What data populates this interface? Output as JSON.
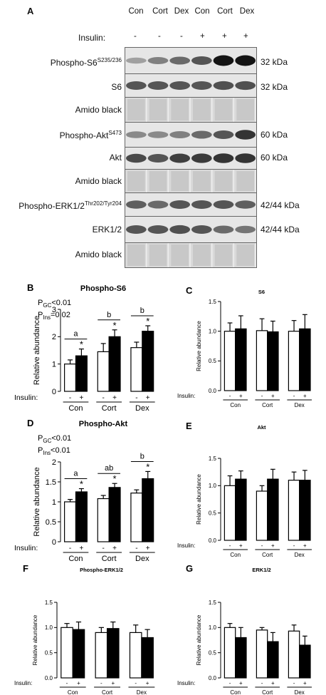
{
  "panel_a": {
    "letter": "A",
    "lanes": [
      "Con",
      "Cort",
      "Dex",
      "Con",
      "Cort",
      "Dex"
    ],
    "insulin_label": "Insulin:",
    "insulin_marks": [
      "-",
      "-",
      "-",
      "+",
      "+",
      "+"
    ],
    "blots": [
      {
        "label": "Phospho-S6",
        "sup": "S235/236",
        "kda": "32 kDa",
        "kind": "band",
        "intensity": [
          0.35,
          0.5,
          0.6,
          0.7,
          1.0,
          1.0
        ]
      },
      {
        "label": "S6",
        "sup": "",
        "kda": "32 kDa",
        "kind": "band",
        "intensity": [
          0.7,
          0.7,
          0.7,
          0.7,
          0.72,
          0.72
        ]
      },
      {
        "label": "Amido black",
        "sup": "",
        "kda": "",
        "kind": "stain",
        "intensity": [
          0.3,
          0.3,
          0.3,
          0.3,
          0.3,
          0.3
        ]
      },
      {
        "label": "Phospho-Akt",
        "sup": "S473",
        "kda": "60 kDa",
        "kind": "band",
        "intensity": [
          0.45,
          0.45,
          0.5,
          0.6,
          0.7,
          0.85
        ]
      },
      {
        "label": "Akt",
        "sup": "",
        "kda": "60 kDa",
        "kind": "band",
        "intensity": [
          0.75,
          0.7,
          0.8,
          0.82,
          0.85,
          0.85
        ]
      },
      {
        "label": "Amido black",
        "sup": "",
        "kda": "",
        "kind": "stain",
        "intensity": [
          0.3,
          0.3,
          0.3,
          0.3,
          0.3,
          0.3
        ]
      },
      {
        "label": "Phospho-ERK1/2",
        "sup": "Thr202/Tyr204",
        "kda": "42/44 kDa",
        "kind": "band",
        "intensity": [
          0.65,
          0.6,
          0.7,
          0.7,
          0.7,
          0.65
        ]
      },
      {
        "label": "ERK1/2",
        "sup": "",
        "kda": "42/44 kDa",
        "kind": "band",
        "intensity": [
          0.7,
          0.7,
          0.72,
          0.7,
          0.6,
          0.55
        ]
      },
      {
        "label": "Amido black",
        "sup": "",
        "kda": "",
        "kind": "stain",
        "intensity": [
          0.3,
          0.3,
          0.3,
          0.3,
          0.3,
          0.3
        ]
      }
    ]
  },
  "chart_data": [
    {
      "panel": "B",
      "type": "bar",
      "title": "Phospho-S6",
      "ylabel": "Relative abundance",
      "ylim": [
        0,
        3
      ],
      "yticks": [
        0,
        1,
        2,
        3
      ],
      "groups": [
        "Con",
        "Cort",
        "Dex"
      ],
      "insulin_label": "Insulin:",
      "series": [
        {
          "name": "-",
          "values": [
            1.0,
            1.45,
            1.6
          ],
          "errors": [
            0.15,
            0.3,
            0.2
          ]
        },
        {
          "name": "+",
          "values": [
            1.3,
            2.0,
            2.2
          ],
          "errors": [
            0.25,
            0.25,
            0.2
          ]
        }
      ],
      "stars": [
        true,
        true,
        true
      ],
      "letters": [
        "a",
        "b",
        "b"
      ],
      "stats": [
        {
          "p": "P",
          "sub": "GC",
          "rest": "<0.01"
        },
        {
          "p": "P",
          "sub": "Ins",
          "rest": "=0.02"
        }
      ]
    },
    {
      "panel": "C",
      "type": "bar",
      "title": "S6",
      "ylabel": "Relative abundance",
      "ylim": [
        0,
        1.5
      ],
      "yticks": [
        0.0,
        0.5,
        1.0,
        1.5
      ],
      "groups": [
        "Con",
        "Cort",
        "Dex"
      ],
      "insulin_label": "Insulin:",
      "series": [
        {
          "name": "-",
          "values": [
            1.0,
            1.01,
            1.0
          ],
          "errors": [
            0.14,
            0.2,
            0.18
          ]
        },
        {
          "name": "+",
          "values": [
            1.04,
            0.99,
            1.04
          ],
          "errors": [
            0.22,
            0.18,
            0.24
          ]
        }
      ],
      "stars": [
        false,
        false,
        false
      ],
      "letters": [],
      "stats": []
    },
    {
      "panel": "D",
      "type": "bar",
      "title": "Phospho-Akt",
      "ylabel": "Relative abundance",
      "ylim": [
        0,
        2.0
      ],
      "yticks": [
        0.0,
        0.5,
        1.0,
        1.5,
        2.0
      ],
      "groups": [
        "Con",
        "Cort",
        "Dex"
      ],
      "insulin_label": "Insulin:",
      "series": [
        {
          "name": "-",
          "values": [
            1.0,
            1.08,
            1.22
          ],
          "errors": [
            0.06,
            0.08,
            0.08
          ]
        },
        {
          "name": "+",
          "values": [
            1.25,
            1.36,
            1.58
          ],
          "errors": [
            0.08,
            0.1,
            0.18
          ]
        }
      ],
      "stars": [
        true,
        true,
        true
      ],
      "letters": [
        "a",
        "ab",
        "b"
      ],
      "stats": [
        {
          "p": "P",
          "sub": "GC",
          "rest": "<0.01"
        },
        {
          "p": "P",
          "sub": "Ins",
          "rest": "<0.01"
        }
      ]
    },
    {
      "panel": "E",
      "type": "bar",
      "title": "Akt",
      "ylabel": "Relative abundance",
      "ylim": [
        0,
        1.5
      ],
      "yticks": [
        0.0,
        0.5,
        1.0,
        1.5
      ],
      "groups": [
        "Con",
        "Cort",
        "Dex"
      ],
      "insulin_label": "Insulin:",
      "series": [
        {
          "name": "-",
          "values": [
            1.0,
            0.9,
            1.1
          ],
          "errors": [
            0.18,
            0.1,
            0.15
          ]
        },
        {
          "name": "+",
          "values": [
            1.12,
            1.12,
            1.1
          ],
          "errors": [
            0.15,
            0.18,
            0.18
          ]
        }
      ],
      "stars": [
        false,
        false,
        false
      ],
      "letters": [],
      "stats": []
    },
    {
      "panel": "F",
      "type": "bar",
      "title": "Phospho-ERK1/2",
      "ylabel": "Relative abundance",
      "ylim": [
        0,
        1.5
      ],
      "yticks": [
        0.0,
        0.5,
        1.0,
        1.5
      ],
      "groups": [
        "Con",
        "Cort",
        "Dex"
      ],
      "insulin_label": "Insulin:",
      "series": [
        {
          "name": "-",
          "values": [
            1.0,
            0.9,
            0.9
          ],
          "errors": [
            0.08,
            0.1,
            0.15
          ]
        },
        {
          "name": "+",
          "values": [
            0.96,
            0.98,
            0.8
          ],
          "errors": [
            0.15,
            0.13,
            0.16
          ]
        }
      ],
      "stars": [
        false,
        false,
        false
      ],
      "letters": [],
      "stats": []
    },
    {
      "panel": "G",
      "type": "bar",
      "title": "ERK1/2",
      "ylabel": "Relative abundance",
      "ylim": [
        0,
        1.5
      ],
      "yticks": [
        0.0,
        0.5,
        1.0,
        1.5
      ],
      "groups": [
        "Con",
        "Cort",
        "Dex"
      ],
      "insulin_label": "Insulin:",
      "series": [
        {
          "name": "-",
          "values": [
            1.0,
            0.95,
            0.93
          ],
          "errors": [
            0.08,
            0.05,
            0.12
          ]
        },
        {
          "name": "+",
          "values": [
            0.8,
            0.72,
            0.65
          ],
          "errors": [
            0.2,
            0.18,
            0.18
          ]
        }
      ],
      "stars": [
        false,
        false,
        false
      ],
      "letters": [],
      "stats": []
    }
  ]
}
